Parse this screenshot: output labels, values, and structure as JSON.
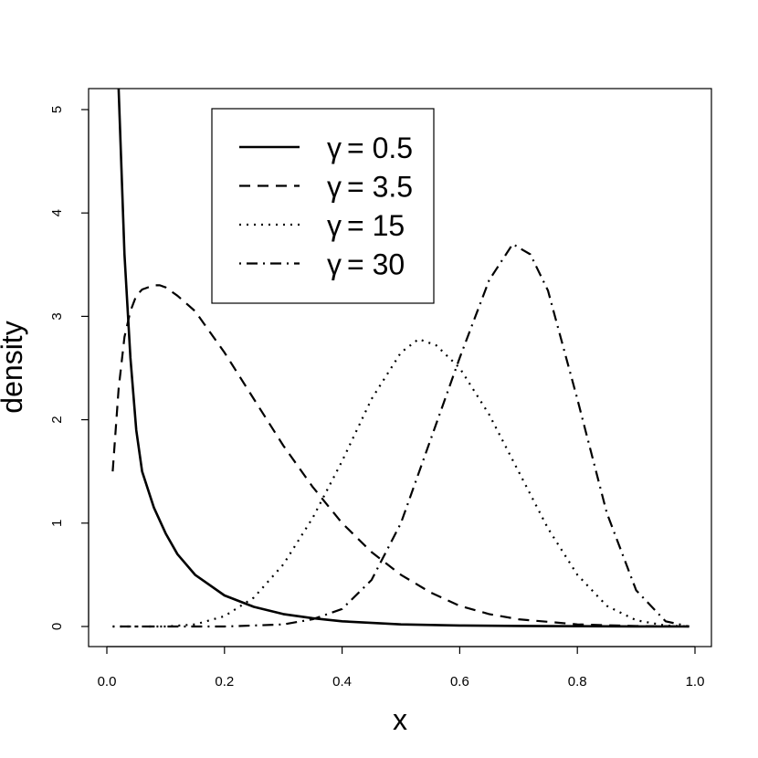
{
  "chart_data": {
    "type": "line",
    "title": "",
    "xlabel": "x",
    "ylabel": "density",
    "xlim": [
      0,
      1
    ],
    "ylim": [
      0,
      5
    ],
    "x_ticks": [
      "0.0",
      "0.2",
      "0.4",
      "0.6",
      "0.8",
      "1.0"
    ],
    "y_ticks": [
      "0",
      "1",
      "2",
      "3",
      "4",
      "5"
    ],
    "grid": false,
    "legend_position": "top-left",
    "series": [
      {
        "name": "γ = 0.5",
        "legend_symbol": "γ",
        "legend_value": "= 0.5",
        "line_style": "solid",
        "x": [
          0.015,
          0.02,
          0.03,
          0.04,
          0.05,
          0.06,
          0.08,
          0.1,
          0.12,
          0.15,
          0.2,
          0.25,
          0.3,
          0.35,
          0.4,
          0.5,
          0.6,
          0.7,
          0.8,
          0.9,
          0.99
        ],
        "y": [
          6.5,
          5.2,
          3.6,
          2.6,
          1.9,
          1.5,
          1.15,
          0.9,
          0.7,
          0.5,
          0.3,
          0.19,
          0.12,
          0.08,
          0.05,
          0.02,
          0.01,
          0.005,
          0.003,
          0.001,
          0.0
        ]
      },
      {
        "name": "γ = 3.5",
        "legend_symbol": "γ",
        "legend_value": "= 3.5",
        "line_style": "dashed",
        "x": [
          0.01,
          0.02,
          0.03,
          0.04,
          0.05,
          0.06,
          0.08,
          0.09,
          0.1,
          0.12,
          0.15,
          0.2,
          0.25,
          0.3,
          0.35,
          0.4,
          0.45,
          0.5,
          0.55,
          0.6,
          0.65,
          0.7,
          0.8,
          0.9,
          0.99
        ],
        "y": [
          1.5,
          2.3,
          2.8,
          3.05,
          3.2,
          3.26,
          3.3,
          3.3,
          3.28,
          3.2,
          3.05,
          2.65,
          2.2,
          1.75,
          1.35,
          1.0,
          0.72,
          0.5,
          0.33,
          0.2,
          0.12,
          0.07,
          0.02,
          0.004,
          0.0
        ]
      },
      {
        "name": "γ = 15",
        "legend_symbol": "γ",
        "legend_value": "= 15",
        "line_style": "dotted",
        "x": [
          0.01,
          0.1,
          0.15,
          0.2,
          0.25,
          0.3,
          0.35,
          0.4,
          0.45,
          0.5,
          0.53,
          0.56,
          0.6,
          0.65,
          0.7,
          0.75,
          0.8,
          0.85,
          0.9,
          0.95,
          0.99
        ],
        "y": [
          0.0,
          0.0,
          0.02,
          0.1,
          0.28,
          0.6,
          1.05,
          1.6,
          2.2,
          2.65,
          2.78,
          2.72,
          2.5,
          2.05,
          1.5,
          0.95,
          0.5,
          0.2,
          0.06,
          0.01,
          0.0
        ]
      },
      {
        "name": "γ = 30",
        "legend_symbol": "γ",
        "legend_value": "= 30",
        "line_style": "dotdash",
        "x": [
          0.01,
          0.2,
          0.25,
          0.3,
          0.35,
          0.4,
          0.45,
          0.5,
          0.55,
          0.6,
          0.65,
          0.69,
          0.72,
          0.75,
          0.8,
          0.85,
          0.9,
          0.95,
          0.99
        ],
        "y": [
          0.0,
          0.0,
          0.01,
          0.02,
          0.07,
          0.17,
          0.45,
          1.0,
          1.8,
          2.6,
          3.35,
          3.7,
          3.6,
          3.25,
          2.2,
          1.1,
          0.35,
          0.05,
          0.0
        ]
      }
    ]
  }
}
